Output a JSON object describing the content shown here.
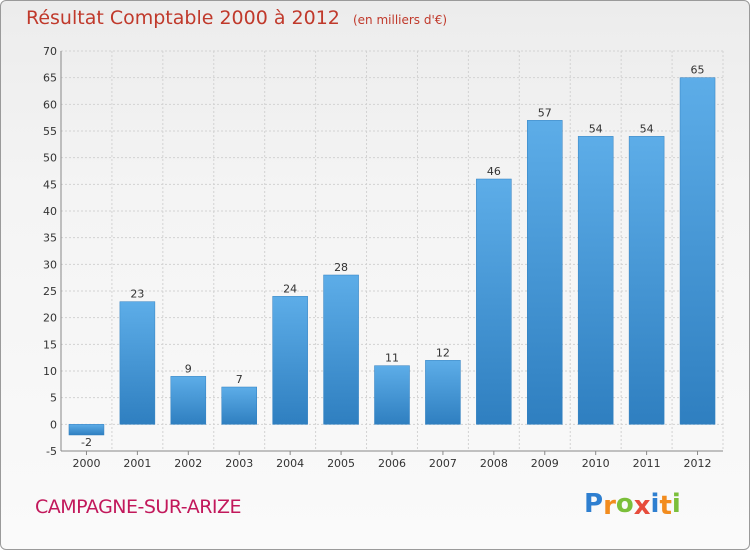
{
  "header": {
    "title": "Résultat Comptable 2000 à 2012",
    "subtitle": "(en milliers d'€)"
  },
  "footer": {
    "commune": "CAMPAGNE-SUR-ARIZE",
    "brand_letters": [
      "P",
      "r",
      "o",
      "x",
      "i",
      "t",
      "i"
    ],
    "brand_colors": [
      "#2e7fd0",
      "#f28c1e",
      "#7bbf3a",
      "#e74c3c",
      "#2e7fd0",
      "#f28c1e",
      "#7bbf3a"
    ]
  },
  "colors": {
    "bar_light": "#5dade8",
    "bar_dark": "#2f7fc0",
    "grid": "#d2d2d2",
    "axis_text": "#333333",
    "title": "#c0392b",
    "commune": "#c2185b"
  },
  "chart_data": {
    "type": "bar",
    "title": "Résultat Comptable 2000 à 2012",
    "subtitle": "(en milliers d'€)",
    "categories": [
      "2000",
      "2001",
      "2002",
      "2003",
      "2004",
      "2005",
      "2006",
      "2007",
      "2008",
      "2009",
      "2010",
      "2011",
      "2012"
    ],
    "values": [
      -2,
      23,
      9,
      7,
      24,
      28,
      11,
      12,
      46,
      57,
      54,
      54,
      65
    ],
    "ylim": [
      -5,
      70
    ],
    "yticks": [
      -5,
      0,
      5,
      10,
      15,
      20,
      25,
      30,
      35,
      40,
      45,
      50,
      55,
      60,
      65,
      70
    ],
    "grid": true,
    "xlabel": "",
    "ylabel": ""
  }
}
